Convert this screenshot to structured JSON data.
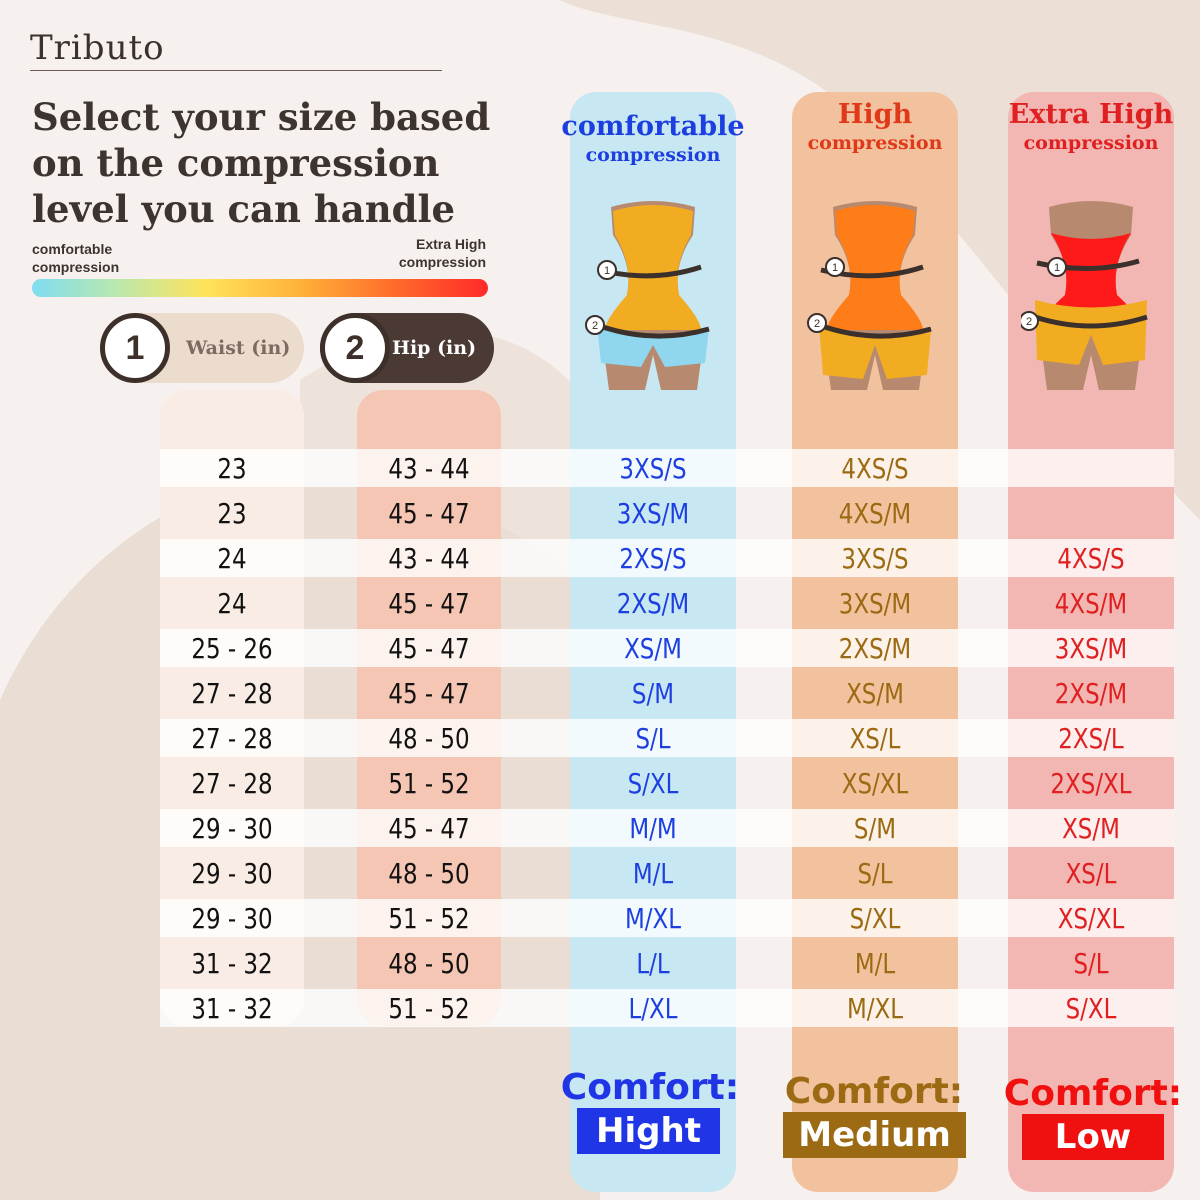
{
  "brand": "Tributo",
  "headline": "Select your size based on the compression level you can handle",
  "scale": {
    "left_label": "comfortable compression",
    "right_label": "Extra High compression"
  },
  "measures": [
    {
      "num": "1",
      "label": "Waist (in)"
    },
    {
      "num": "2",
      "label": "Hip (in)"
    }
  ],
  "columns": [
    {
      "title": "comfortable",
      "subtitle": "compression",
      "color": "#1e3fe0",
      "comfort_label": "Comfort:",
      "comfort_value": "Hight",
      "comfort_color": "#1f35e6"
    },
    {
      "title": "High",
      "subtitle": "compression",
      "color": "#e0391a",
      "comfort_label": "Comfort:",
      "comfort_value": "Medium",
      "comfort_color": "#9b6a12"
    },
    {
      "title": "Extra High",
      "subtitle": "compression",
      "color": "#e02020",
      "comfort_label": "Comfort:",
      "comfort_value": "Low",
      "comfort_color": "#f01010"
    }
  ],
  "figure_labels": [
    "1",
    "2"
  ],
  "rows": [
    {
      "waist": "23",
      "hip": "43 - 44",
      "comf": "3XS/S",
      "high": "4XS/S",
      "xhigh": ""
    },
    {
      "waist": "23",
      "hip": "45 - 47",
      "comf": "3XS/M",
      "high": "4XS/M",
      "xhigh": ""
    },
    {
      "waist": "24",
      "hip": "43 - 44",
      "comf": "2XS/S",
      "high": "3XS/S",
      "xhigh": "4XS/S"
    },
    {
      "waist": "24",
      "hip": "45 - 47",
      "comf": "2XS/M",
      "high": "3XS/M",
      "xhigh": "4XS/M"
    },
    {
      "waist": "25 - 26",
      "hip": "45 - 47",
      "comf": "XS/M",
      "high": "2XS/M",
      "xhigh": "3XS/M"
    },
    {
      "waist": "27 - 28",
      "hip": "45 - 47",
      "comf": "S/M",
      "high": "XS/M",
      "xhigh": "2XS/M"
    },
    {
      "waist": "27 - 28",
      "hip": "48 - 50",
      "comf": "S/L",
      "high": "XS/L",
      "xhigh": "2XS/L"
    },
    {
      "waist": "27 - 28",
      "hip": "51 - 52",
      "comf": "S/XL",
      "high": "XS/XL",
      "xhigh": "2XS/XL"
    },
    {
      "waist": "29 - 30",
      "hip": "45 - 47",
      "comf": "M/M",
      "high": "S/M",
      "xhigh": "XS/M"
    },
    {
      "waist": "29 - 30",
      "hip": "48 - 50",
      "comf": "M/L",
      "high": "S/L",
      "xhigh": "XS/L"
    },
    {
      "waist": "29 - 30",
      "hip": "51 - 52",
      "comf": "M/XL",
      "high": "S/XL",
      "xhigh": "XS/XL"
    },
    {
      "waist": "31 - 32",
      "hip": "48 - 50",
      "comf": "L/L",
      "high": "M/L",
      "xhigh": "S/L"
    },
    {
      "waist": "31 - 32",
      "hip": "51 - 52",
      "comf": "L/XL",
      "high": "M/XL",
      "xhigh": "S/XL"
    }
  ]
}
